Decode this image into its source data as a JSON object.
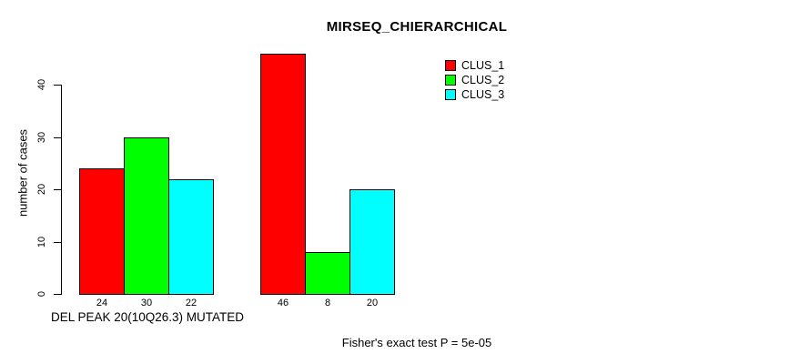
{
  "chart_data": {
    "type": "bar",
    "title": "MIRSEQ_CHIERARCHICAL",
    "ylabel": "number of cases",
    "xlabel": "DEL PEAK 20(10Q26.3) MUTATED",
    "annotation": "Fisher's exact test P = 5e-05",
    "ylim": [
      0,
      46
    ],
    "yticks": [
      0,
      10,
      20,
      30,
      40
    ],
    "grid": false,
    "legend_position": "top-right",
    "bar_value_labels_shown": true,
    "series": [
      {
        "name": "CLUS_1",
        "color": "#ff0000",
        "values": [
          24,
          46
        ]
      },
      {
        "name": "CLUS_2",
        "color": "#00ff00",
        "values": [
          30,
          8
        ]
      },
      {
        "name": "CLUS_3",
        "color": "#00ffff",
        "values": [
          22,
          20
        ]
      }
    ],
    "colors": {
      "background": "#ffffff",
      "axis": "#000000",
      "text": "#000000"
    }
  }
}
